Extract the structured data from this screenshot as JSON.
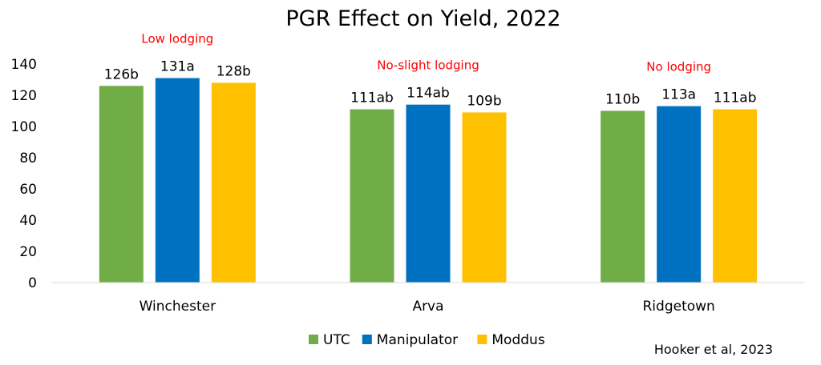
{
  "colors": {
    "annotation": "#FF0000",
    "axis": "#D9D9D9"
  },
  "chart_data": {
    "type": "bar",
    "title": "PGR Effect on Yield, 2022",
    "categories": [
      "Winchester",
      "Arva",
      "Ridgetown"
    ],
    "series": [
      {
        "name": "UTC",
        "color": "#70AD47",
        "values": [
          126,
          111,
          110
        ],
        "labels": [
          "126b",
          "111ab",
          "110b"
        ]
      },
      {
        "name": "Manipulator",
        "color": "#0070C0",
        "values": [
          131,
          114,
          113
        ],
        "labels": [
          "131a",
          "114ab",
          "113a"
        ]
      },
      {
        "name": "Moddus",
        "color": "#FFC000",
        "values": [
          128,
          109,
          111
        ],
        "labels": [
          "128b",
          "109b",
          "111ab"
        ]
      }
    ],
    "annotations": [
      "Low lodging",
      "No-slight lodging",
      "No lodging"
    ],
    "ylim": [
      0,
      140
    ],
    "yticks": [
      0,
      20,
      40,
      60,
      80,
      100,
      120,
      140
    ],
    "grid": false,
    "legend_position": "bottom",
    "source": "Hooker et al, 2023"
  }
}
